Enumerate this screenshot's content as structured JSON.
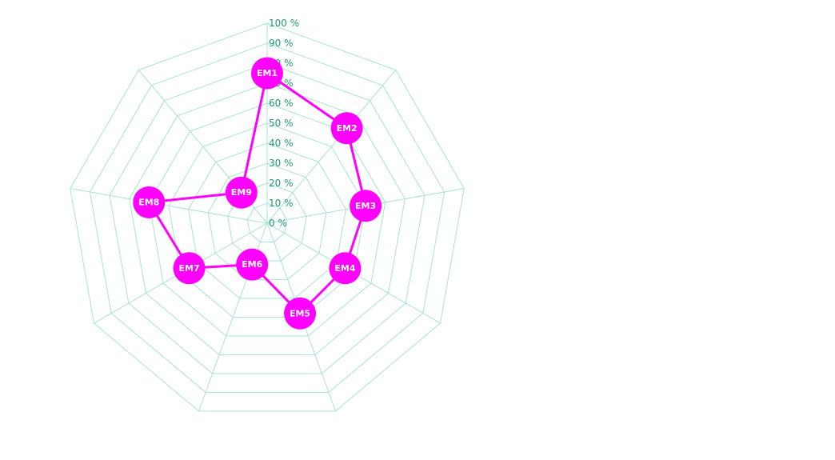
{
  "chart_data": {
    "type": "radar",
    "categories": [
      "EM1",
      "EM2",
      "EM3",
      "EM4",
      "EM5",
      "EM6",
      "EM7",
      "EM8",
      "EM9"
    ],
    "series": [
      {
        "values": [
          75,
          62,
          50,
          45,
          48,
          22,
          45,
          60,
          20
        ]
      }
    ],
    "rlim": [
      0,
      100
    ],
    "r_ticks": [
      "0 %",
      "10 %",
      "20 %",
      "30 %",
      "40 %",
      "50 %",
      "60 %",
      "70 %",
      "80 %",
      "90 %",
      "100 %"
    ],
    "grid": true,
    "legend": "none"
  },
  "colors": {
    "series": "#ff00ff",
    "grid": "#a9e3d3",
    "tick_text": "#1f9a72",
    "point_text": "#ffffff"
  }
}
